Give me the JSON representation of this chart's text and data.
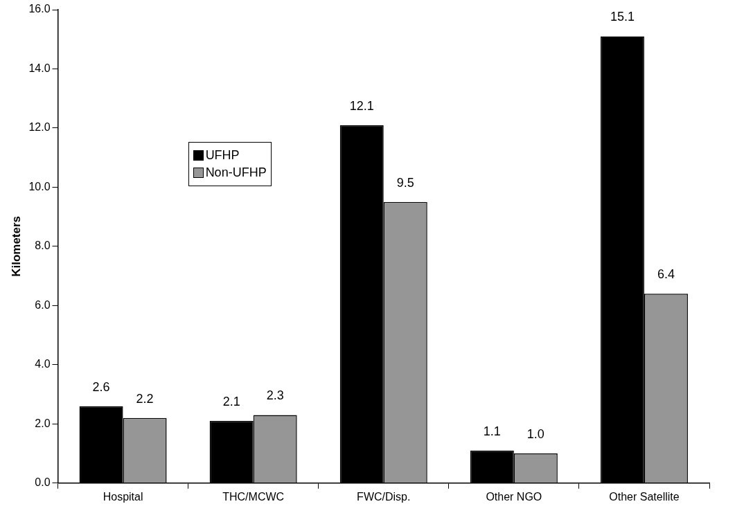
{
  "chart_data": {
    "type": "bar",
    "ylabel": "Kilometers",
    "categories": [
      "Hospital",
      "THC/MCWC",
      "FWC/Disp.",
      "Other NGO",
      "Other Satellite"
    ],
    "series": [
      {
        "name": "UFHP",
        "color": "#000000",
        "values": [
          2.6,
          2.1,
          12.1,
          1.1,
          15.1
        ],
        "value_labels": [
          "2.6",
          "2.1",
          "12.1",
          "1.1",
          "15.1"
        ]
      },
      {
        "name": "Non-UFHP",
        "color": "#969696",
        "values": [
          2.2,
          2.3,
          9.5,
          1.0,
          6.4
        ],
        "value_labels": [
          "2.2",
          "2.3",
          "9.5",
          "1.0",
          "6.4"
        ]
      }
    ],
    "ylim": [
      0,
      16
    ],
    "yticks": [
      {
        "value": 0,
        "label": "0.0"
      },
      {
        "value": 2,
        "label": "2.0"
      },
      {
        "value": 4,
        "label": "4.0"
      },
      {
        "value": 6,
        "label": "6.0"
      },
      {
        "value": 8,
        "label": "8.0"
      },
      {
        "value": 10,
        "label": "10.0"
      },
      {
        "value": 12,
        "label": "12.0"
      },
      {
        "value": 14,
        "label": "14.0"
      },
      {
        "value": 16,
        "label": "16.0"
      }
    ],
    "grid": false,
    "legend": "top left"
  }
}
